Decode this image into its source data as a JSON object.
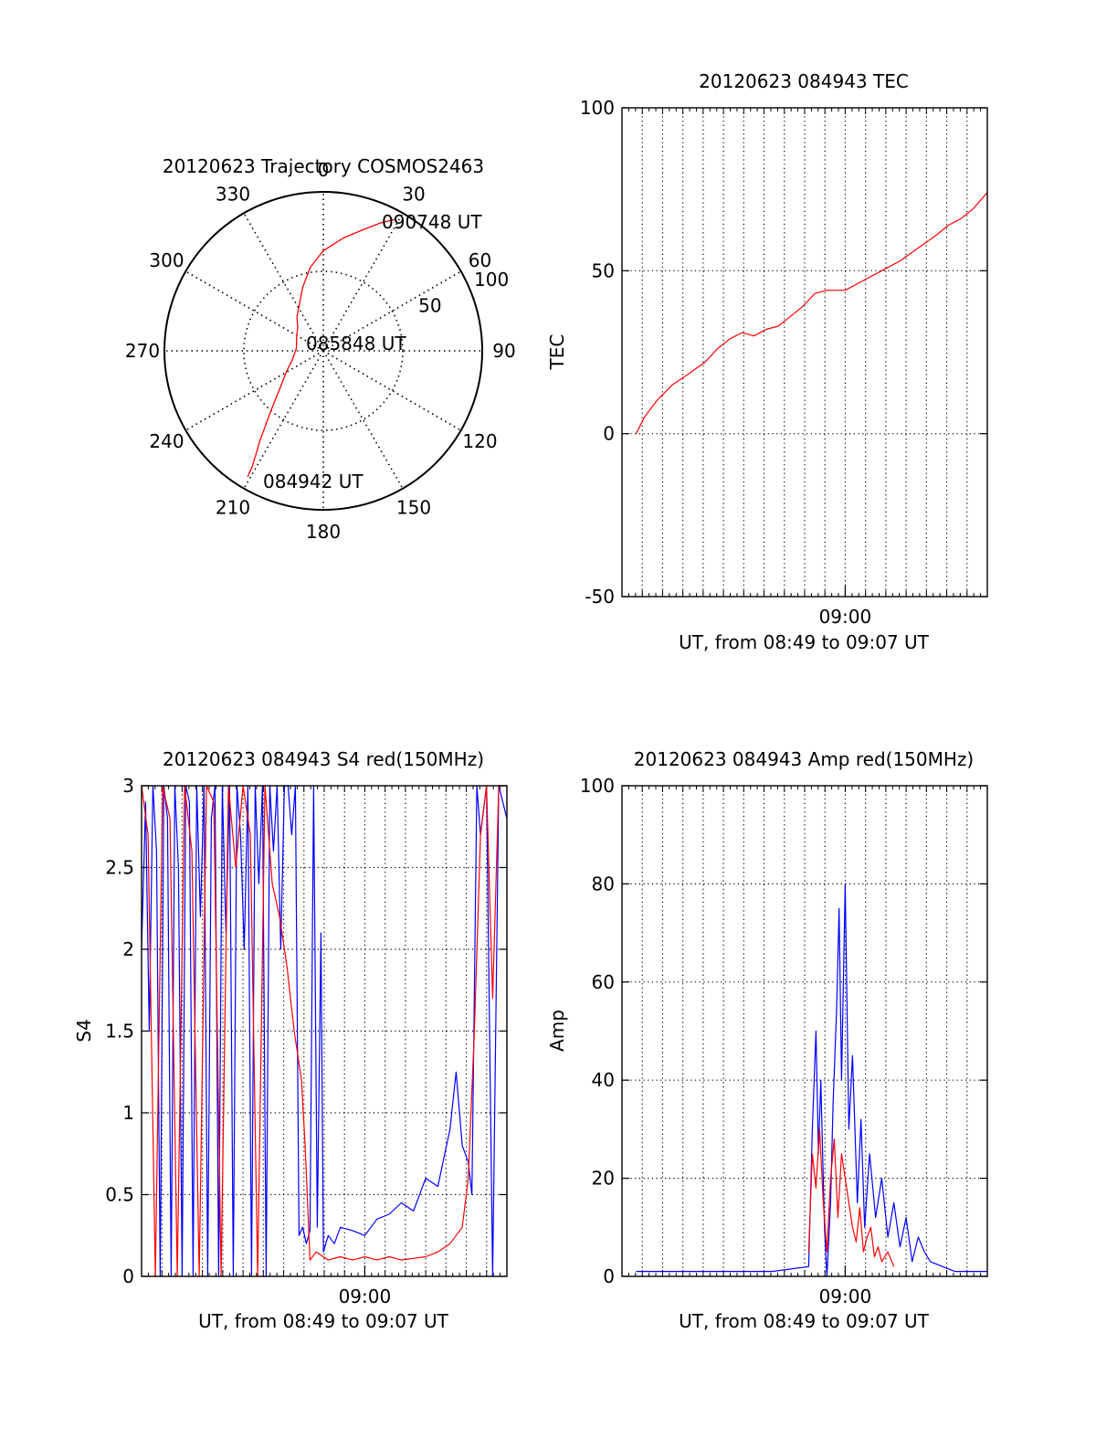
{
  "colors": {
    "red": "#ff0000",
    "blue": "#0000ff",
    "axis": "#000000",
    "grid": "#000000"
  },
  "chart_data": [
    {
      "id": "trajectory",
      "type": "polar",
      "title": "20120623 Trajectory COSMOS2463",
      "azimuth_ticks": [
        "0",
        "30",
        "60",
        "90",
        "120",
        "150",
        "180",
        "210",
        "240",
        "270",
        "300",
        "330"
      ],
      "radial_ticks": [
        "50",
        "100"
      ],
      "radial_range": [
        0,
        100
      ],
      "annotations": [
        "090748 UT",
        "085848 UT",
        "084942 UT"
      ],
      "series": [
        {
          "color": "red",
          "points": [
            {
              "az": 211,
              "r": 92.5
            },
            {
              "az": 211.5,
              "r": 86
            },
            {
              "az": 213,
              "r": 78
            },
            {
              "az": 215,
              "r": 70
            },
            {
              "az": 217,
              "r": 62
            },
            {
              "az": 220,
              "r": 53
            },
            {
              "az": 224,
              "r": 44
            },
            {
              "az": 231,
              "r": 34
            },
            {
              "az": 240,
              "r": 27
            },
            {
              "az": 255,
              "r": 20
            },
            {
              "az": 275,
              "r": 17
            },
            {
              "az": 298,
              "r": 19
            },
            {
              "az": 313,
              "r": 22
            },
            {
              "az": 322,
              "r": 27
            },
            {
              "az": 342,
              "r": 42
            },
            {
              "az": 351,
              "r": 53
            },
            {
              "az": 0,
              "r": 63
            },
            {
              "az": 10,
              "r": 72
            },
            {
              "az": 18,
              "r": 80
            },
            {
              "az": 24,
              "r": 88
            },
            {
              "az": 28.5,
              "r": 94
            }
          ]
        }
      ]
    },
    {
      "id": "tec",
      "type": "line",
      "title": "20120623 084943 TEC",
      "xlabel": "UT, from 08:49 to 09:07 UT",
      "ylabel": "TEC",
      "xlim": [
        8.8167,
        9.1167
      ],
      "ylim": [
        -50,
        100
      ],
      "yticks": [
        "100",
        "50",
        "0",
        "-50"
      ],
      "ytick_values": [
        100,
        50,
        0,
        -50
      ],
      "xtick_labels": [
        "09:00"
      ],
      "xtick_values": [
        9.0
      ],
      "grid": true,
      "series": [
        {
          "color": "red",
          "x": [
            8.8283,
            8.835,
            8.845,
            8.858,
            8.87,
            8.885,
            8.895,
            8.905,
            8.915,
            8.925,
            8.935,
            8.945,
            8.955,
            8.965,
            8.975,
            8.985,
            9.0,
            9.015,
            9.03,
            9.045,
            9.06,
            9.075,
            9.085,
            9.095,
            9.105,
            9.1167
          ],
          "y": [
            0,
            5,
            10,
            15,
            18,
            22,
            26,
            29,
            31,
            30,
            32,
            33,
            36,
            39,
            43,
            44,
            44,
            47,
            50,
            53,
            57,
            61,
            64,
            66,
            69,
            74
          ]
        }
      ]
    },
    {
      "id": "s4",
      "type": "line",
      "title": "20120623 084943 S4 red(150MHz)",
      "xlabel": "UT, from 08:49 to 09:07 UT",
      "ylabel": "S4",
      "xlim": [
        8.8167,
        9.1167
      ],
      "ylim": [
        0,
        3
      ],
      "yticks": [
        "3",
        "2.5",
        "2",
        "1.5",
        "1",
        "0.5",
        "0"
      ],
      "ytick_values": [
        3,
        2.5,
        2,
        1.5,
        1,
        0.5,
        0
      ],
      "xtick_labels": [
        "09:00"
      ],
      "xtick_values": [
        9.0
      ],
      "grid": true,
      "series": [
        {
          "color": "blue",
          "x": [
            8.8167,
            8.82,
            8.823,
            8.826,
            8.829,
            8.832,
            8.835,
            8.838,
            8.841,
            8.844,
            8.847,
            8.85,
            8.853,
            8.856,
            8.859,
            8.862,
            8.865,
            8.868,
            8.871,
            8.874,
            8.877,
            8.88,
            8.883,
            8.886,
            8.889,
            8.892,
            8.895,
            8.898,
            8.901,
            8.904,
            8.907,
            8.91,
            8.913,
            8.916,
            8.919,
            8.922,
            8.925,
            8.928,
            8.931,
            8.934,
            8.937,
            8.94,
            8.943,
            8.946,
            8.949,
            8.952,
            8.955,
            8.958,
            8.961,
            8.964,
            8.966,
            8.97,
            8.975,
            8.98,
            8.99,
            9.0,
            9.01,
            9.02,
            9.03,
            9.04,
            9.05,
            9.06,
            9.07,
            9.075,
            9.08,
            9.085,
            9.088,
            9.092,
            9.095,
            9.1,
            9.105,
            9.11,
            9.1167
          ],
          "y": [
            2.0,
            2.9,
            1.5,
            3.0,
            2.6,
            0.0,
            3.0,
            2.8,
            0.0,
            3.0,
            2.5,
            0.0,
            3.0,
            2.9,
            0.0,
            3.0,
            2.2,
            3.0,
            0.0,
            2.8,
            3.0,
            0.0,
            3.0,
            2.1,
            3.0,
            0.0,
            3.0,
            2.7,
            2.0,
            3.0,
            0.0,
            3.0,
            2.4,
            3.0,
            0.0,
            3.0,
            2.6,
            3.0,
            2.0,
            3.0,
            3.0,
            2.7,
            3.0,
            0.25,
            0.3,
            0.2,
            0.28,
            3.0,
            0.3,
            2.1,
            0.15,
            0.25,
            0.2,
            0.3,
            0.28,
            0.25,
            0.35,
            0.38,
            0.45,
            0.4,
            0.6,
            0.55,
            0.9,
            1.25,
            0.8,
            0.7,
            0.5,
            3.0,
            2.7,
            3.0,
            0.0,
            3.0,
            2.8
          ]
        },
        {
          "color": "red",
          "x": [
            8.8167,
            8.822,
            8.828,
            8.834,
            8.84,
            8.846,
            8.852,
            8.858,
            8.864,
            8.87,
            8.876,
            8.882,
            8.888,
            8.894,
            8.9,
            8.906,
            8.912,
            8.918,
            8.924,
            8.93,
            8.936,
            8.942,
            8.948,
            8.951,
            8.955,
            8.96,
            8.97,
            8.98,
            8.99,
            9.0,
            9.01,
            9.02,
            9.03,
            9.04,
            9.05,
            9.06,
            9.07,
            9.08,
            9.085,
            9.09,
            9.095,
            9.1,
            9.105,
            9.11,
            9.1167
          ],
          "y": [
            3.0,
            2.7,
            0.0,
            3.0,
            2.8,
            0.0,
            3.0,
            2.6,
            0.0,
            3.0,
            2.9,
            0.0,
            3.0,
            2.5,
            3.0,
            2.7,
            0.0,
            3.0,
            2.4,
            2.2,
            1.9,
            1.5,
            1.2,
            0.8,
            0.1,
            0.15,
            0.1,
            0.12,
            0.1,
            0.12,
            0.1,
            0.12,
            0.1,
            0.11,
            0.12,
            0.15,
            0.2,
            0.3,
            0.6,
            1.5,
            2.7,
            3.0,
            1.7,
            3.0,
            3.0
          ]
        }
      ]
    },
    {
      "id": "amp",
      "type": "line",
      "title": "20120623 084943 Amp red(150MHz)",
      "xlabel": "UT, from 08:49 to 09:07 UT",
      "ylabel": "Amp",
      "xlim": [
        8.8167,
        9.1167
      ],
      "ylim": [
        0,
        100
      ],
      "yticks": [
        "100",
        "80",
        "60",
        "40",
        "20",
        "0"
      ],
      "ytick_values": [
        100,
        80,
        60,
        40,
        20,
        0
      ],
      "xtick_labels": [
        "09:00"
      ],
      "xtick_values": [
        9.0
      ],
      "grid": true,
      "series": [
        {
          "color": "blue",
          "x": [
            8.8283,
            8.86,
            8.9,
            8.94,
            8.97,
            8.973,
            8.976,
            8.978,
            8.98,
            8.983,
            8.985,
            8.988,
            8.99,
            8.993,
            8.995,
            8.997,
            9.0,
            9.003,
            9.006,
            9.01,
            9.013,
            9.016,
            9.02,
            9.025,
            9.03,
            9.035,
            9.04,
            9.045,
            9.05,
            9.055,
            9.06,
            9.065,
            9.07,
            9.08,
            9.09,
            9.1,
            9.1167
          ],
          "y": [
            1,
            1,
            1,
            1,
            2,
            30,
            50,
            25,
            40,
            10,
            0,
            15,
            35,
            55,
            75,
            40,
            80,
            30,
            45,
            15,
            32,
            10,
            25,
            12,
            20,
            8,
            15,
            6,
            12,
            3,
            8,
            5,
            3,
            2,
            1,
            1,
            1
          ]
        },
        {
          "color": "red",
          "x": [
            8.97,
            8.973,
            8.976,
            8.979,
            8.982,
            8.985,
            8.988,
            8.991,
            8.994,
            8.997,
            9.0,
            9.003,
            9.006,
            9.009,
            9.012,
            9.015,
            9.018,
            9.021,
            9.024,
            9.027,
            9.03,
            9.035,
            9.04
          ],
          "y": [
            5,
            25,
            18,
            30,
            15,
            5,
            20,
            28,
            12,
            25,
            20,
            15,
            10,
            7,
            14,
            5,
            8,
            10,
            4,
            6,
            3,
            5,
            2
          ]
        }
      ]
    }
  ]
}
